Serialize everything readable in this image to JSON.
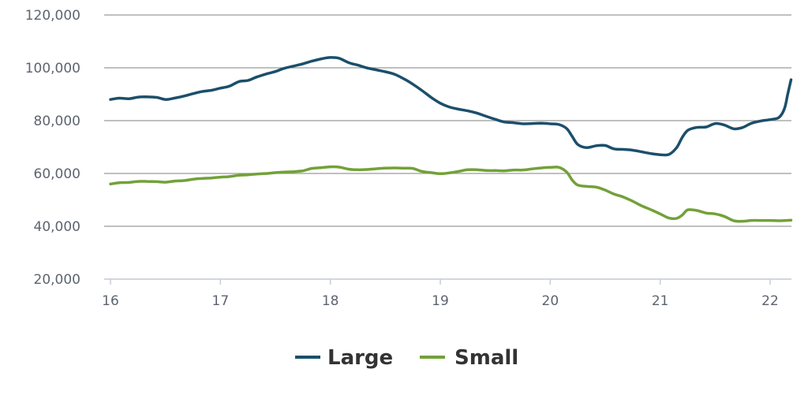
{
  "chart_data": {
    "type": "line",
    "title": "",
    "xlabel": "",
    "ylabel": "",
    "xlim": [
      16,
      22.2
    ],
    "ylim": [
      20000,
      120000
    ],
    "x_ticks": [
      16,
      17,
      18,
      19,
      20,
      21,
      22
    ],
    "x_tick_labels": [
      "16",
      "17",
      "18",
      "19",
      "20",
      "21",
      "22"
    ],
    "y_ticks": [
      20000,
      40000,
      60000,
      80000,
      100000,
      120000
    ],
    "y_tick_labels": [
      "20,000",
      "40,000",
      "60,000",
      "80,000",
      "100,000",
      "120,000"
    ],
    "grid": true,
    "legend_position": "bottom-center",
    "series": [
      {
        "name": "Large",
        "color": "#1b4f6b",
        "points": [
          [
            16.0,
            88000
          ],
          [
            16.08,
            88500
          ],
          [
            16.17,
            88300
          ],
          [
            16.25,
            88900
          ],
          [
            16.33,
            89000
          ],
          [
            16.42,
            88800
          ],
          [
            16.5,
            88000
          ],
          [
            16.58,
            88500
          ],
          [
            16.67,
            89300
          ],
          [
            16.75,
            90200
          ],
          [
            16.83,
            91000
          ],
          [
            16.92,
            91500
          ],
          [
            17.0,
            92300
          ],
          [
            17.08,
            93000
          ],
          [
            17.17,
            94800
          ],
          [
            17.25,
            95200
          ],
          [
            17.33,
            96500
          ],
          [
            17.42,
            97700
          ],
          [
            17.5,
            98600
          ],
          [
            17.58,
            99800
          ],
          [
            17.67,
            100700
          ],
          [
            17.75,
            101500
          ],
          [
            17.83,
            102500
          ],
          [
            17.92,
            103400
          ],
          [
            18.0,
            103900
          ],
          [
            18.08,
            103600
          ],
          [
            18.17,
            101900
          ],
          [
            18.25,
            101000
          ],
          [
            18.33,
            100000
          ],
          [
            18.42,
            99200
          ],
          [
            18.5,
            98500
          ],
          [
            18.58,
            97600
          ],
          [
            18.67,
            95800
          ],
          [
            18.75,
            93800
          ],
          [
            18.83,
            91500
          ],
          [
            18.92,
            88700
          ],
          [
            19.0,
            86600
          ],
          [
            19.08,
            85200
          ],
          [
            19.17,
            84300
          ],
          [
            19.25,
            83700
          ],
          [
            19.33,
            82900
          ],
          [
            19.42,
            81600
          ],
          [
            19.5,
            80500
          ],
          [
            19.58,
            79500
          ],
          [
            19.67,
            79200
          ],
          [
            19.75,
            78800
          ],
          [
            19.83,
            78900
          ],
          [
            19.92,
            79000
          ],
          [
            20.0,
            78800
          ],
          [
            20.08,
            78500
          ],
          [
            20.15,
            77000
          ],
          [
            20.2,
            74000
          ],
          [
            20.25,
            71000
          ],
          [
            20.33,
            69800
          ],
          [
            20.42,
            70500
          ],
          [
            20.5,
            70600
          ],
          [
            20.58,
            69300
          ],
          [
            20.67,
            69100
          ],
          [
            20.75,
            68800
          ],
          [
            20.83,
            68200
          ],
          [
            20.92,
            67500
          ],
          [
            21.0,
            67100
          ],
          [
            21.08,
            67200
          ],
          [
            21.15,
            69800
          ],
          [
            21.2,
            73600
          ],
          [
            21.25,
            76300
          ],
          [
            21.33,
            77400
          ],
          [
            21.42,
            77600
          ],
          [
            21.5,
            78900
          ],
          [
            21.58,
            78400
          ],
          [
            21.67,
            76900
          ],
          [
            21.75,
            77400
          ],
          [
            21.83,
            79000
          ],
          [
            21.92,
            79900
          ],
          [
            22.0,
            80400
          ],
          [
            22.08,
            81200
          ],
          [
            22.13,
            84500
          ],
          [
            22.16,
            90000
          ],
          [
            22.19,
            95500
          ]
        ]
      },
      {
        "name": "Small",
        "color": "#72a138",
        "points": [
          [
            16.0,
            56000
          ],
          [
            16.08,
            56500
          ],
          [
            16.17,
            56600
          ],
          [
            16.25,
            57000
          ],
          [
            16.33,
            57000
          ],
          [
            16.42,
            56900
          ],
          [
            16.5,
            56700
          ],
          [
            16.58,
            57100
          ],
          [
            16.67,
            57300
          ],
          [
            16.75,
            57800
          ],
          [
            16.83,
            58100
          ],
          [
            16.92,
            58300
          ],
          [
            17.0,
            58600
          ],
          [
            17.08,
            58800
          ],
          [
            17.17,
            59300
          ],
          [
            17.25,
            59500
          ],
          [
            17.33,
            59800
          ],
          [
            17.42,
            60000
          ],
          [
            17.5,
            60300
          ],
          [
            17.58,
            60500
          ],
          [
            17.67,
            60700
          ],
          [
            17.75,
            61000
          ],
          [
            17.83,
            61900
          ],
          [
            17.92,
            62200
          ],
          [
            18.0,
            62500
          ],
          [
            18.08,
            62400
          ],
          [
            18.17,
            61600
          ],
          [
            18.25,
            61400
          ],
          [
            18.33,
            61500
          ],
          [
            18.42,
            61800
          ],
          [
            18.5,
            62000
          ],
          [
            18.58,
            62100
          ],
          [
            18.67,
            62000
          ],
          [
            18.75,
            61900
          ],
          [
            18.83,
            60800
          ],
          [
            18.92,
            60300
          ],
          [
            19.0,
            59900
          ],
          [
            19.08,
            60200
          ],
          [
            19.17,
            60800
          ],
          [
            19.25,
            61400
          ],
          [
            19.33,
            61400
          ],
          [
            19.42,
            61100
          ],
          [
            19.5,
            61100
          ],
          [
            19.58,
            61000
          ],
          [
            19.67,
            61300
          ],
          [
            19.75,
            61300
          ],
          [
            19.83,
            61700
          ],
          [
            19.92,
            62100
          ],
          [
            20.0,
            62300
          ],
          [
            20.08,
            62300
          ],
          [
            20.15,
            60500
          ],
          [
            20.2,
            57500
          ],
          [
            20.25,
            55600
          ],
          [
            20.33,
            55100
          ],
          [
            20.42,
            54800
          ],
          [
            20.5,
            53700
          ],
          [
            20.58,
            52200
          ],
          [
            20.67,
            51000
          ],
          [
            20.75,
            49500
          ],
          [
            20.83,
            47800
          ],
          [
            20.92,
            46200
          ],
          [
            21.0,
            44700
          ],
          [
            21.08,
            43100
          ],
          [
            21.15,
            43000
          ],
          [
            21.2,
            44200
          ],
          [
            21.25,
            46200
          ],
          [
            21.33,
            46000
          ],
          [
            21.42,
            45000
          ],
          [
            21.5,
            44700
          ],
          [
            21.58,
            43800
          ],
          [
            21.67,
            42100
          ],
          [
            21.75,
            41900
          ],
          [
            21.83,
            42200
          ],
          [
            21.92,
            42200
          ],
          [
            22.0,
            42200
          ],
          [
            22.08,
            42100
          ],
          [
            22.19,
            42300
          ]
        ]
      }
    ]
  }
}
